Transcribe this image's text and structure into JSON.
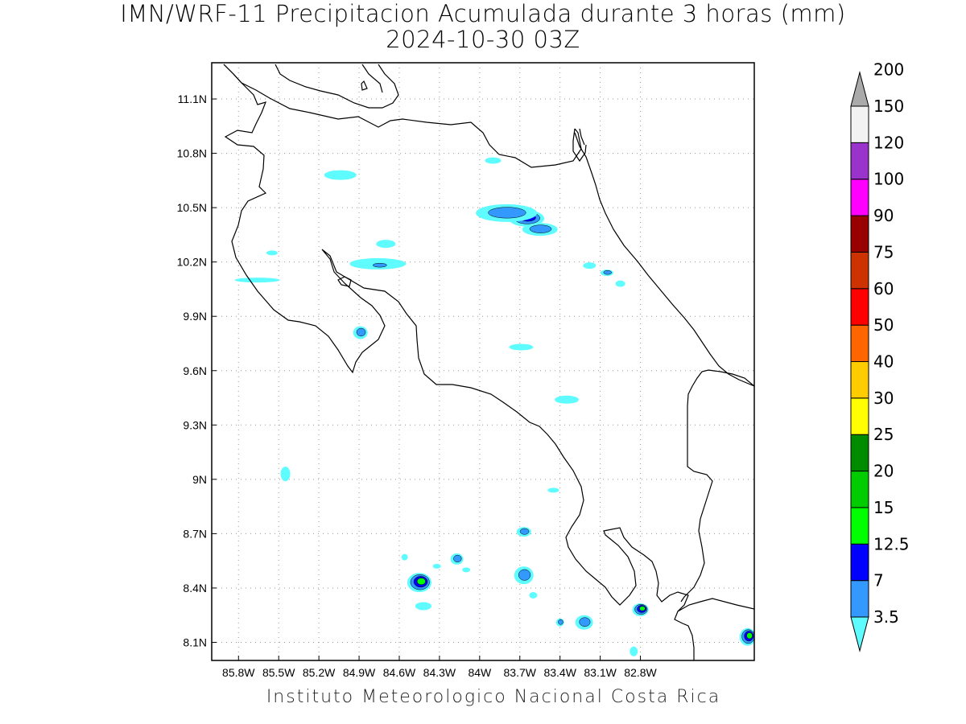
{
  "title": "IMN/WRF-11 Precipitacion Acumulada durante 3 horas (mm)",
  "subtitle": "2024-10-30 03Z",
  "credit": "Instituto Meteorologico Nacional Costa Rica",
  "map": {
    "lon_range": [
      -86.0,
      -81.95
    ],
    "lat_range": [
      8.0,
      11.3
    ],
    "lon_ticks": [
      {
        "value": -85.8,
        "label": "85.8W"
      },
      {
        "value": -85.5,
        "label": "85.5W"
      },
      {
        "value": -85.2,
        "label": "85.2W"
      },
      {
        "value": -84.9,
        "label": "84.9W"
      },
      {
        "value": -84.6,
        "label": "84.6W"
      },
      {
        "value": -84.3,
        "label": "84.3W"
      },
      {
        "value": -84.0,
        "label": "84W"
      },
      {
        "value": -83.7,
        "label": "83.7W"
      },
      {
        "value": -83.4,
        "label": "83.4W"
      },
      {
        "value": -83.1,
        "label": "83.1W"
      },
      {
        "value": -82.8,
        "label": "82.8W"
      }
    ],
    "lat_ticks": [
      {
        "value": 11.1,
        "label": "11.1N"
      },
      {
        "value": 10.8,
        "label": "10.8N"
      },
      {
        "value": 10.5,
        "label": "10.5N"
      },
      {
        "value": 10.2,
        "label": "10.2N"
      },
      {
        "value": 9.9,
        "label": "9.9N"
      },
      {
        "value": 9.6,
        "label": "9.6N"
      },
      {
        "value": 9.3,
        "label": "9.3N"
      },
      {
        "value": 9.0,
        "label": "9N"
      },
      {
        "value": 8.7,
        "label": "8.7N"
      },
      {
        "value": 8.4,
        "label": "8.4N"
      },
      {
        "value": 8.1,
        "label": "8.1N"
      }
    ],
    "grid": "dotted"
  },
  "colorbar": {
    "levels": [
      {
        "label": "3.5",
        "color": "#5efcff"
      },
      {
        "label": "7",
        "color": "#3399ff"
      },
      {
        "label": "12.5",
        "color": "#0000ff"
      },
      {
        "label": "15",
        "color": "#00ff00"
      },
      {
        "label": "20",
        "color": "#00cc00"
      },
      {
        "label": "25",
        "color": "#008c00"
      },
      {
        "label": "30",
        "color": "#ffff00"
      },
      {
        "label": "40",
        "color": "#ffcc00"
      },
      {
        "label": "50",
        "color": "#ff6600"
      },
      {
        "label": "60",
        "color": "#ff0000"
      },
      {
        "label": "75",
        "color": "#cc3300"
      },
      {
        "label": "90",
        "color": "#990000"
      },
      {
        "label": "100",
        "color": "#ff00ff"
      },
      {
        "label": "120",
        "color": "#9933cc"
      },
      {
        "label": "150",
        "color": "#f2f2f2"
      },
      {
        "label": "200",
        "color": "#aaaaaa"
      }
    ]
  },
  "precip_cells": [
    {
      "lon": -84.45,
      "lat": 8.43,
      "rx": 15,
      "ry": 12,
      "level": 3
    },
    {
      "lon": -83.65,
      "lat": 10.44,
      "rx": 22,
      "ry": 10,
      "level": 2
    },
    {
      "lon": -83.8,
      "lat": 10.47,
      "rx": 38,
      "ry": 11,
      "level": 1
    },
    {
      "lon": -83.55,
      "lat": 10.38,
      "rx": 22,
      "ry": 8,
      "level": 1
    },
    {
      "lon": -84.76,
      "lat": 10.19,
      "rx": 35,
      "ry": 7,
      "level": 0
    },
    {
      "lon": -84.75,
      "lat": 10.18,
      "rx": 14,
      "ry": 4,
      "level": 1
    },
    {
      "lon": -84.7,
      "lat": 10.3,
      "rx": 12,
      "ry": 5,
      "level": 0
    },
    {
      "lon": -83.22,
      "lat": 8.21,
      "rx": 11,
      "ry": 9,
      "level": 1
    },
    {
      "lon": -83.67,
      "lat": 8.47,
      "rx": 12,
      "ry": 11,
      "level": 1
    },
    {
      "lon": -84.17,
      "lat": 8.56,
      "rx": 8,
      "ry": 7,
      "level": 1
    },
    {
      "lon": -82.8,
      "lat": 8.28,
      "rx": 10,
      "ry": 8,
      "level": 3
    },
    {
      "lon": -82.0,
      "lat": 8.13,
      "rx": 10,
      "ry": 11,
      "level": 3
    },
    {
      "lon": -84.89,
      "lat": 9.81,
      "rx": 9,
      "ry": 8,
      "level": 1
    },
    {
      "lon": -83.67,
      "lat": 8.71,
      "rx": 9,
      "ry": 6,
      "level": 1
    },
    {
      "lon": -83.4,
      "lat": 8.21,
      "rx": 5,
      "ry": 5,
      "level": 1
    },
    {
      "lon": -83.69,
      "lat": 9.73,
      "rx": 15,
      "ry": 4,
      "level": 0
    },
    {
      "lon": -83.35,
      "lat": 9.44,
      "rx": 15,
      "ry": 5,
      "level": 0
    },
    {
      "lon": -85.45,
      "lat": 9.03,
      "rx": 6,
      "ry": 9,
      "level": 0
    },
    {
      "lon": -85.66,
      "lat": 10.1,
      "rx": 28,
      "ry": 3,
      "level": 0
    },
    {
      "lon": -85.04,
      "lat": 10.68,
      "rx": 20,
      "ry": 6,
      "level": 0
    },
    {
      "lon": -83.9,
      "lat": 10.76,
      "rx": 10,
      "ry": 4,
      "level": 0
    },
    {
      "lon": -83.05,
      "lat": 10.14,
      "rx": 8,
      "ry": 4,
      "level": 1
    },
    {
      "lon": -82.95,
      "lat": 10.08,
      "rx": 6,
      "ry": 4,
      "level": 0
    },
    {
      "lon": -83.18,
      "lat": 10.18,
      "rx": 8,
      "ry": 4,
      "level": 0
    },
    {
      "lon": -84.56,
      "lat": 8.57,
      "rx": 4,
      "ry": 4,
      "level": 0
    },
    {
      "lon": -84.42,
      "lat": 8.3,
      "rx": 10,
      "ry": 5,
      "level": 0
    },
    {
      "lon": -84.32,
      "lat": 8.52,
      "rx": 5,
      "ry": 3,
      "level": 0
    },
    {
      "lon": -84.1,
      "lat": 8.5,
      "rx": 5,
      "ry": 3,
      "level": 0
    },
    {
      "lon": -83.6,
      "lat": 8.36,
      "rx": 5,
      "ry": 4,
      "level": 0
    },
    {
      "lon": -82.85,
      "lat": 8.05,
      "rx": 5,
      "ry": 6,
      "level": 0
    },
    {
      "lon": -85.55,
      "lat": 10.25,
      "rx": 7,
      "ry": 3,
      "level": 0
    },
    {
      "lon": -83.45,
      "lat": 8.94,
      "rx": 7,
      "ry": 3,
      "level": 0
    }
  ]
}
